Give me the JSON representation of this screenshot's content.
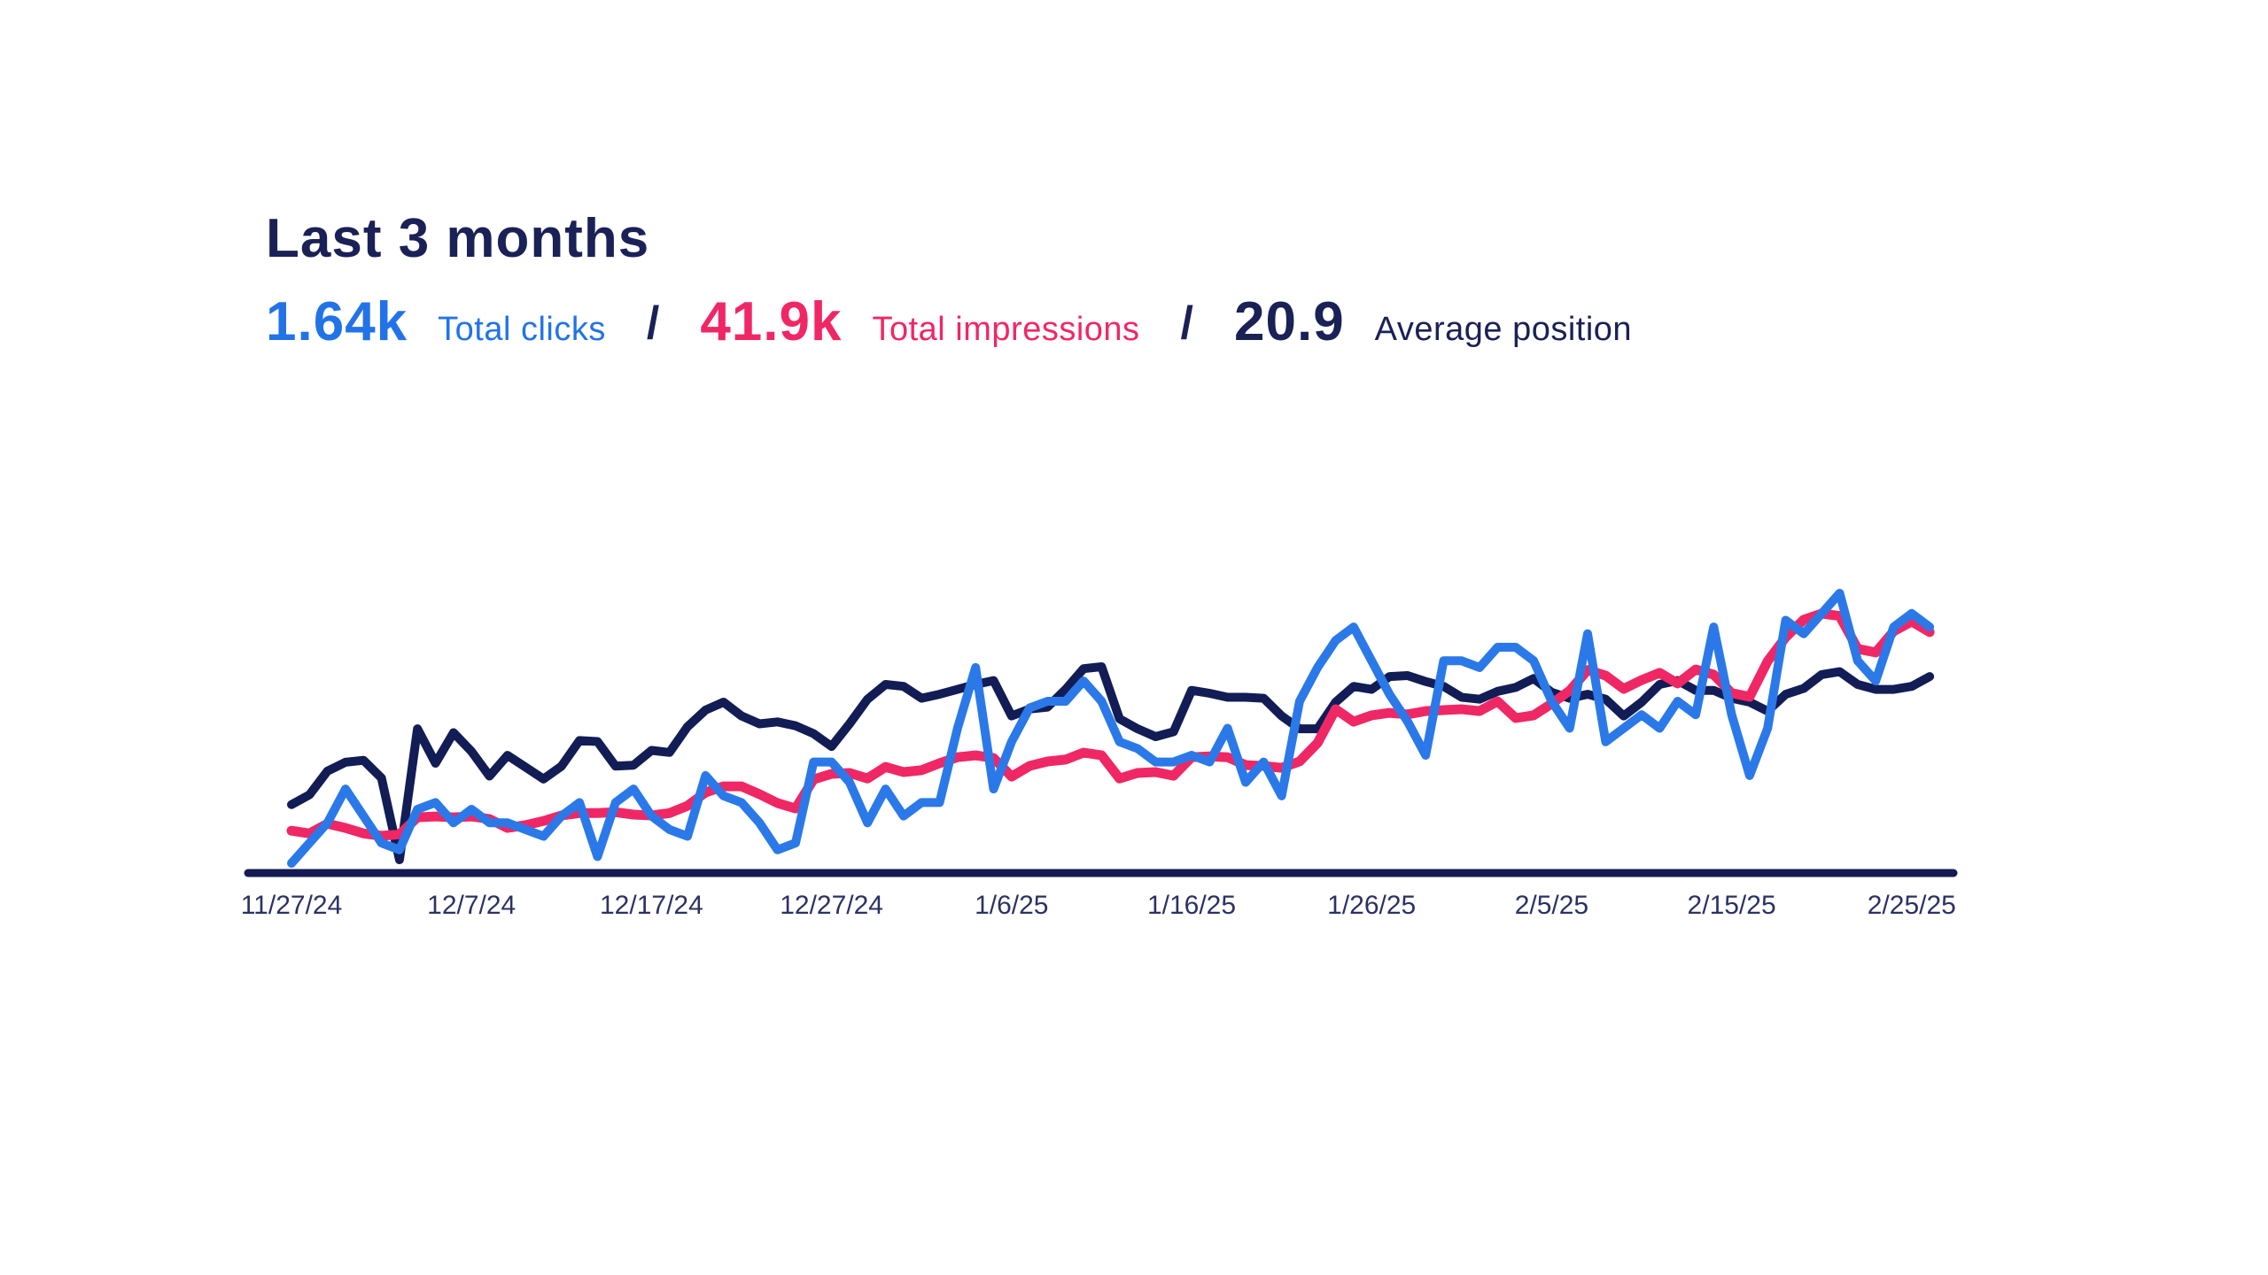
{
  "header": {
    "title": "Last 3 months",
    "separator": "/",
    "stats": [
      {
        "id": "total-clicks",
        "value": "1.64k",
        "label": "Total clicks",
        "color": "#2273E8"
      },
      {
        "id": "total-impressions",
        "value": "41.9k",
        "label": "Total impressions",
        "color": "#F02765"
      },
      {
        "id": "average-position",
        "value": "20.9",
        "label": "Average position",
        "color": "#1A2156"
      }
    ]
  },
  "chart_data": {
    "type": "line",
    "title": "Last 3 months search performance",
    "x_unit": "day",
    "x_start": "11/27/24",
    "x_end": "2/26/25",
    "n_points": 92,
    "x_tick_labels": [
      "11/27/24",
      "12/7/24",
      "12/17/24",
      "12/27/24",
      "1/6/25",
      "1/16/25",
      "1/26/25",
      "2/5/25",
      "2/15/25",
      "2/25/25"
    ],
    "x_tick_indices": [
      0,
      10,
      20,
      30,
      40,
      50,
      60,
      70,
      80,
      90
    ],
    "grid": false,
    "y_axis_visible": false,
    "legend_position": "none",
    "axis_color": "#141B52",
    "tick_label_color": "#2B3263",
    "series": [
      {
        "name": "Total clicks",
        "color": "#2B79E8",
        "total": "1.64k",
        "values": [
          0,
          3,
          6,
          11,
          7,
          3,
          2,
          8,
          9,
          6,
          8,
          6,
          6,
          5,
          4,
          7,
          9,
          1,
          9,
          11,
          7,
          5,
          4,
          13,
          10,
          9,
          6,
          2,
          3,
          15,
          15,
          12,
          6,
          11,
          7,
          9,
          9,
          20,
          29,
          11,
          18,
          23,
          24,
          24,
          27,
          24,
          18,
          17,
          15,
          15,
          16,
          15,
          20,
          12,
          15,
          10,
          24,
          29,
          33,
          35,
          30,
          25,
          21,
          16,
          30,
          30,
          29,
          32,
          32,
          30,
          24,
          20,
          34,
          18,
          20,
          22,
          20,
          24,
          22,
          35,
          22,
          13,
          20,
          36,
          34,
          37,
          40,
          30,
          27,
          35,
          37,
          35
        ]
      },
      {
        "name": "Total impressions",
        "color": "#F02765",
        "total": "41.9k",
        "values": [
          181,
          172,
          204,
          190,
          172,
          164,
          169,
          225,
          228,
          225,
          228,
          219,
          190,
          199,
          213,
          231,
          239,
          239,
          242,
          234,
          231,
          239,
          263,
          307,
          327,
          327,
          301,
          272,
          254,
          350,
          368,
          371,
          353,
          391,
          374,
          380,
          403,
          423,
          429,
          420,
          359,
          394,
          409,
          415,
          438,
          429,
          353,
          371,
          374,
          362,
          423,
          426,
          423,
          397,
          394,
          388,
          409,
          470,
          581,
          540,
          561,
          569,
          564,
          575,
          578,
          581,
          575,
          607,
          552,
          561,
          599,
          642,
          710,
          692,
          648,
          677,
          701,
          666,
          712,
          695,
          634,
          622,
          739,
          818,
          876,
          896,
          888,
          780,
          768,
          838,
          870,
          835
        ]
      },
      {
        "name": "Average position",
        "color": "#121C55",
        "average": "20.9",
        "invert_y": true,
        "values": [
          30.0,
          29.0,
          26.6,
          25.7,
          25.5,
          27.3,
          35.6,
          22.3,
          25.8,
          22.7,
          24.6,
          27.1,
          25.0,
          26.2,
          27.4,
          26.1,
          23.5,
          23.6,
          26.1,
          26.0,
          24.5,
          24.7,
          22.1,
          20.4,
          19.6,
          21.0,
          21.8,
          21.6,
          22.0,
          22.8,
          24.1,
          21.8,
          19.3,
          17.8,
          18.0,
          19.2,
          18.8,
          18.3,
          17.8,
          17.4,
          21.0,
          20.3,
          20.1,
          18.3,
          16.2,
          16.0,
          21.3,
          22.3,
          23.1,
          22.6,
          18.4,
          18.7,
          19.1,
          19.1,
          19.2,
          21.0,
          22.3,
          22.3,
          19.6,
          18.0,
          18.3,
          17.0,
          16.9,
          17.5,
          18.0,
          19.1,
          19.3,
          18.5,
          18.1,
          17.2,
          18.6,
          19.2,
          18.8,
          19.3,
          21.0,
          19.6,
          17.8,
          17.4,
          18.4,
          18.4,
          19.2,
          19.6,
          20.5,
          18.8,
          18.2,
          16.8,
          16.5,
          17.8,
          18.3,
          18.3,
          18.0,
          17.0
        ]
      }
    ]
  }
}
